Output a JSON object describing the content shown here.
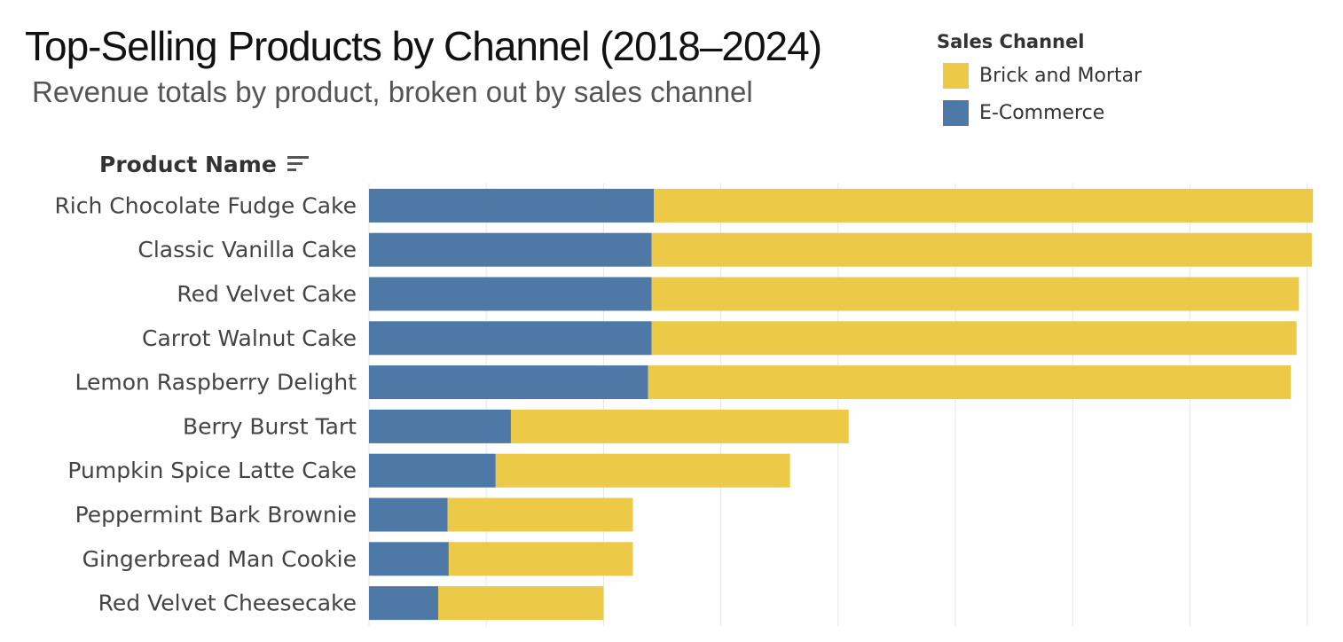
{
  "chart_data": {
    "type": "bar",
    "orientation": "horizontal",
    "stacked": true,
    "title": "Top-Selling Products by Channel (2018–2024)",
    "subtitle": "Revenue totals by product, broken out by sales channel",
    "y_axis_header": "Product Name",
    "legend_title": "Sales Channel",
    "legend_placement": "top-right",
    "grid": true,
    "categories": [
      "Rich Chocolate Fudge Cake",
      "Classic Vanilla Cake",
      "Red Velvet Cake",
      "Carrot Walnut Cake",
      "Lemon Raspberry Delight",
      "Berry Burst Tart",
      "Pumpkin Spice Latte Cake",
      "Peppermint Bark Brownie",
      "Gingerbread Man Cookie",
      "Red Velvet Cheesecake"
    ],
    "series": [
      {
        "name": "E-Commerce",
        "color": "#4e79a7",
        "values": [
          2.43,
          2.41,
          2.41,
          2.41,
          2.38,
          1.21,
          1.08,
          0.67,
          0.68,
          0.59
        ]
      },
      {
        "name": "Brick and Mortar",
        "color": "#edc948",
        "values": [
          5.62,
          5.63,
          5.52,
          5.5,
          5.48,
          2.88,
          2.51,
          1.58,
          1.57,
          1.41
        ]
      }
    ],
    "legend_order": [
      "Brick and Mortar",
      "E-Commerce"
    ],
    "xlim": [
      0,
      8.2
    ],
    "gridline_interval": 1
  }
}
